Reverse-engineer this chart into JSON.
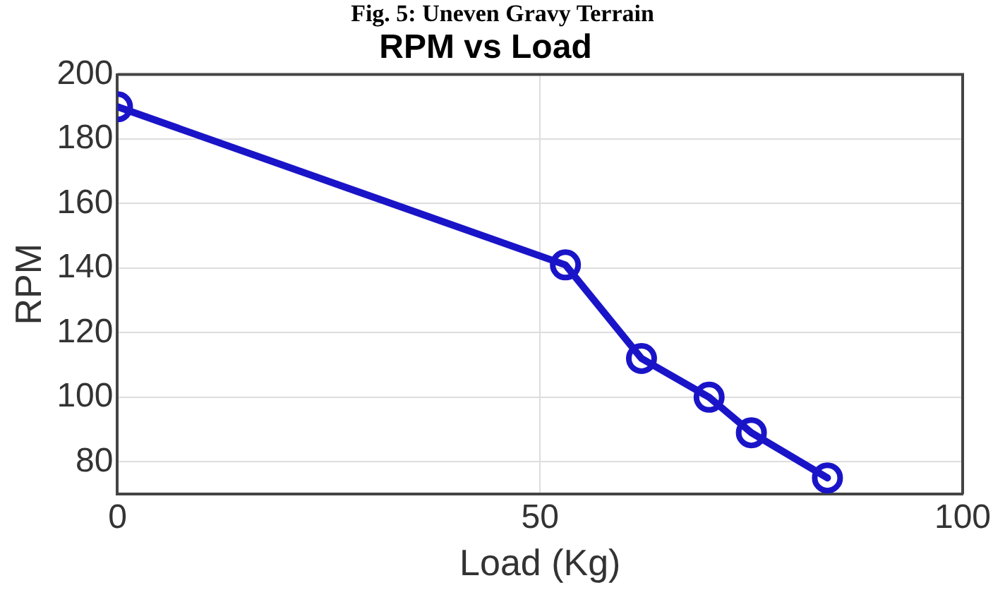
{
  "chart_data": {
    "type": "line",
    "title": "RPM vs Load",
    "xlabel": "Load (Kg)",
    "ylabel": "RPM",
    "annotations": [
      "Fig. 5: Uneven Gravy Terrain"
    ],
    "x": [
      0,
      53,
      62,
      70,
      75,
      84
    ],
    "series": [
      {
        "color": "#1a14c8",
        "values": [
          190,
          141,
          112,
          100,
          89,
          75
        ]
      }
    ],
    "xlim": [
      0,
      100
    ],
    "xticks": [
      0,
      50,
      100
    ],
    "ylim": [
      70,
      200
    ],
    "yticks": [
      80,
      100,
      120,
      140,
      160,
      180,
      200
    ],
    "grid": true,
    "legend": false,
    "marker": "circle",
    "line_style": "solid"
  }
}
